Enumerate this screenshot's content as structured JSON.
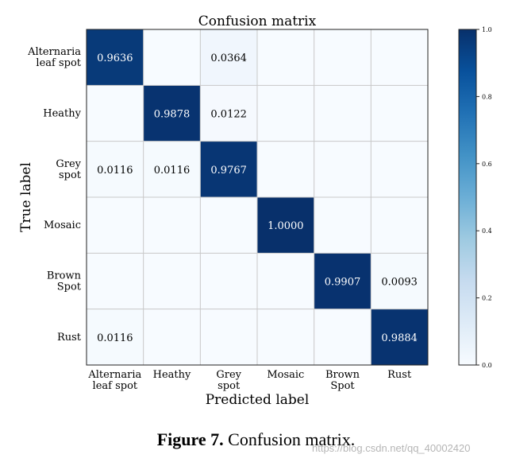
{
  "chart_data": {
    "type": "heatmap",
    "title": "Confusion matrix",
    "xlabel": "Predicted label",
    "ylabel": "True label",
    "row_labels": [
      [
        "Alternaria",
        "leaf spot"
      ],
      [
        "Heathy"
      ],
      [
        "Grey",
        "spot"
      ],
      [
        "Mosaic"
      ],
      [
        "Brown",
        "Spot"
      ],
      [
        "Rust"
      ]
    ],
    "col_labels": [
      [
        "Alternaria",
        "leaf spot"
      ],
      [
        "Heathy"
      ],
      [
        "Grey",
        "spot"
      ],
      [
        "Mosaic"
      ],
      [
        "Brown",
        "Spot"
      ],
      [
        "Rust"
      ]
    ],
    "matrix": [
      [
        0.9636,
        0,
        0.0364,
        0,
        0,
        0
      ],
      [
        0,
        0.9878,
        0.0122,
        0,
        0,
        0
      ],
      [
        0.0116,
        0.0116,
        0.9767,
        0,
        0,
        0
      ],
      [
        0,
        0,
        0,
        1.0,
        0,
        0
      ],
      [
        0,
        0,
        0,
        0,
        0.9907,
        0.0093
      ],
      [
        0.0116,
        0,
        0,
        0,
        0,
        0.9884
      ]
    ],
    "cell_labels": [
      [
        "0.9636",
        "",
        "0.0364",
        "",
        "",
        ""
      ],
      [
        "",
        "0.9878",
        "0.0122",
        "",
        "",
        ""
      ],
      [
        "0.0116",
        "0.0116",
        "0.9767",
        "",
        "",
        ""
      ],
      [
        "",
        "",
        "",
        "1.0000",
        "",
        ""
      ],
      [
        "",
        "",
        "",
        "",
        "0.9907",
        "0.0093"
      ],
      [
        "0.0116",
        "",
        "",
        "",
        "",
        "0.9884"
      ]
    ],
    "colorbar": {
      "range": [
        0.0,
        1.0
      ],
      "ticks": [
        "0.0",
        "0.2",
        "0.4",
        "0.6",
        "0.8",
        "1.0"
      ],
      "colors": {
        "low": "#f7fbff",
        "high": "#08306b"
      }
    }
  },
  "caption": {
    "label": "Figure 7.",
    "text": " Confusion matrix."
  },
  "watermark": "https://blog.csdn.net/qq_40002420"
}
